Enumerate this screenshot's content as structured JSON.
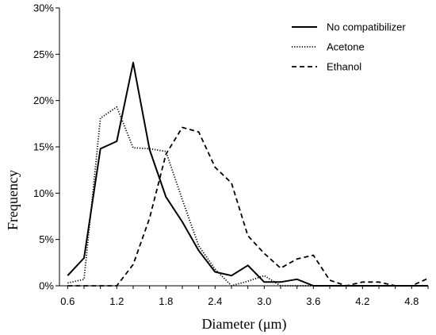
{
  "chart_data": {
    "type": "line",
    "title": "",
    "xlabel": "Diameter (μm)",
    "ylabel": "Frequency",
    "xlim": [
      0.5,
      5.0
    ],
    "ylim": [
      0,
      30
    ],
    "x_ticks": [
      "0.6",
      "1.2",
      "1.8",
      "2.4",
      "3.0",
      "3.6",
      "4.2",
      "4.8"
    ],
    "x_tick_values": [
      0.6,
      1.2,
      1.8,
      2.4,
      3.0,
      3.6,
      4.2,
      4.8
    ],
    "y_ticks": [
      "0%",
      "5%",
      "10%",
      "15%",
      "20%",
      "25%",
      "30%"
    ],
    "y_tick_values": [
      0,
      5,
      10,
      15,
      20,
      25,
      30
    ],
    "grid": false,
    "legend_position": "top-right",
    "series": [
      {
        "name": "No compatibilizer",
        "style": "solid",
        "x": [
          0.6,
          0.8,
          1.0,
          1.2,
          1.4,
          1.6,
          1.8,
          2.0,
          2.2,
          2.4,
          2.6,
          2.8,
          3.0,
          3.2,
          3.4,
          3.6,
          3.8,
          4.0,
          4.2,
          4.4,
          4.6,
          4.8,
          5.0
        ],
        "values": [
          1.1,
          3.0,
          14.8,
          15.6,
          24.1,
          14.7,
          9.6,
          6.9,
          3.8,
          1.5,
          1.1,
          2.2,
          0.4,
          0.4,
          0.7,
          0,
          0,
          0,
          0,
          0,
          0,
          0,
          0
        ]
      },
      {
        "name": "Acetone",
        "style": "dotted",
        "x": [
          0.6,
          0.8,
          1.0,
          1.2,
          1.4,
          1.6,
          1.8,
          2.0,
          2.2,
          2.4,
          2.6,
          2.8,
          3.0,
          3.2,
          3.4,
          3.6,
          3.8,
          4.0,
          4.2,
          4.4,
          4.6,
          4.8,
          5.0
        ],
        "values": [
          0.3,
          0.7,
          18.1,
          19.3,
          14.9,
          14.8,
          14.5,
          9.3,
          4.3,
          1.8,
          0.0,
          0.5,
          1.1,
          0.0,
          0,
          0,
          0,
          0,
          0,
          0,
          0,
          0,
          0
        ]
      },
      {
        "name": "Ethanol",
        "style": "dashed",
        "x": [
          0.6,
          0.8,
          1.0,
          1.2,
          1.4,
          1.6,
          1.8,
          2.0,
          2.2,
          2.4,
          2.6,
          2.8,
          3.0,
          3.2,
          3.4,
          3.6,
          3.8,
          4.0,
          4.2,
          4.4,
          4.6,
          4.8,
          5.0
        ],
        "values": [
          0,
          0,
          0,
          0,
          2.3,
          7.3,
          14.2,
          17.1,
          16.6,
          12.8,
          11.1,
          5.4,
          3.5,
          1.9,
          2.9,
          3.3,
          0.6,
          0,
          0.4,
          0.4,
          0,
          0,
          0.8
        ]
      }
    ]
  }
}
